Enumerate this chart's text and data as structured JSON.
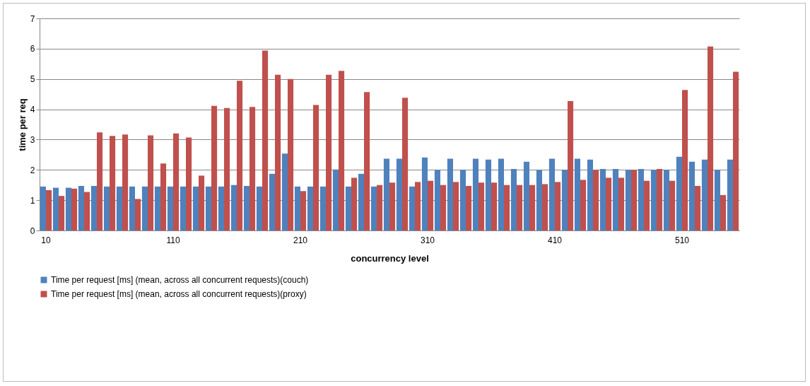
{
  "chart_data": {
    "type": "bar",
    "xlabel": "concurrency level",
    "ylabel": "time per req",
    "categories": [
      "10",
      null,
      null,
      null,
      null,
      null,
      null,
      null,
      null,
      null,
      "110",
      null,
      null,
      null,
      null,
      null,
      null,
      null,
      null,
      null,
      "210",
      null,
      null,
      null,
      null,
      null,
      null,
      null,
      null,
      null,
      "310",
      null,
      null,
      null,
      null,
      null,
      null,
      null,
      null,
      null,
      "410",
      null,
      null,
      null,
      null,
      null,
      null,
      null,
      null,
      null,
      "510",
      null,
      null,
      null,
      null
    ],
    "series": [
      {
        "name": "Time per request [ms] (mean, across all concurrent requests)(couch)",
        "color": "#4f81bd",
        "values": [
          1.45,
          1.41,
          1.41,
          1.47,
          1.47,
          1.45,
          1.45,
          1.45,
          1.45,
          1.45,
          1.45,
          1.45,
          1.45,
          1.45,
          1.45,
          1.5,
          1.47,
          1.45,
          1.87,
          2.54,
          1.45,
          1.45,
          1.45,
          2.01,
          1.45,
          1.87,
          1.45,
          2.37,
          2.37,
          1.45,
          2.41,
          2.0,
          2.37,
          2.0,
          2.37,
          2.34,
          2.37,
          2.03,
          2.27,
          2.0,
          2.37,
          2.0,
          2.37,
          2.34,
          2.03,
          2.03,
          2.0,
          2.03,
          2.0,
          2.0,
          2.43,
          2.27,
          2.34,
          2.0,
          2.34
        ]
      },
      {
        "name": "Time per request [ms] (mean, across all concurrent requests)(proxy)",
        "color": "#c0504d",
        "values": [
          1.33,
          1.14,
          1.38,
          1.27,
          3.24,
          3.12,
          3.17,
          1.04,
          3.14,
          2.21,
          3.2,
          3.07,
          1.81,
          4.11,
          4.04,
          4.94,
          4.08,
          5.94,
          5.14,
          5.0,
          1.3,
          4.14,
          5.14,
          5.27,
          1.74,
          4.57,
          1.5,
          1.58,
          4.38,
          1.6,
          1.64,
          1.5,
          1.6,
          1.47,
          1.58,
          1.58,
          1.5,
          1.5,
          1.5,
          1.53,
          1.6,
          4.27,
          1.67,
          2.0,
          1.74,
          1.74,
          2.0,
          1.64,
          2.03,
          1.64,
          4.64,
          1.47,
          6.07,
          1.17,
          5.24
        ]
      }
    ],
    "ylim": [
      0,
      7
    ],
    "yticks": [
      0,
      1,
      2,
      3,
      4,
      5,
      6,
      7
    ],
    "grid": "y",
    "legend": "bottom"
  }
}
